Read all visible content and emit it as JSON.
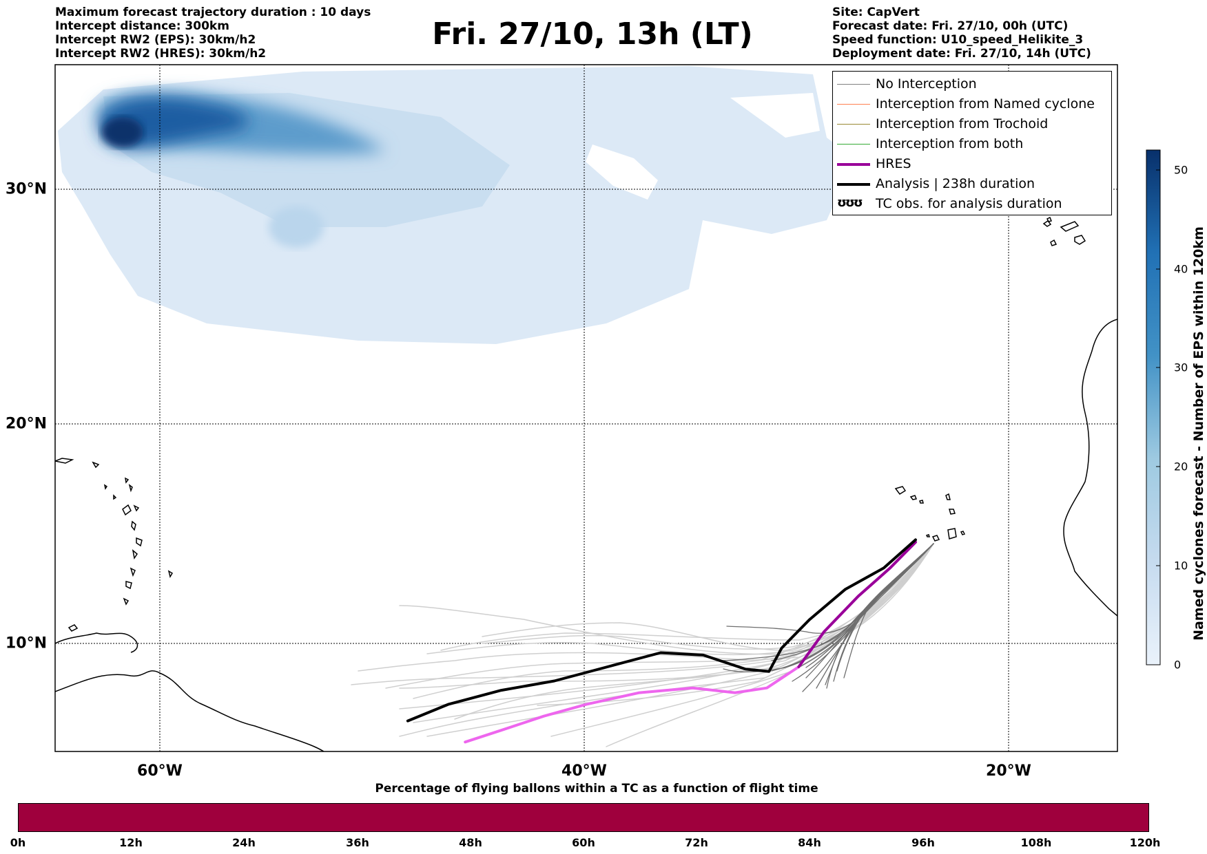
{
  "header_left": {
    "line1": "Maximum forecast trajectory duration : 10 days",
    "line2": "Intercept distance: 300km",
    "line3": "Intercept RW2 (EPS):  30km/h2",
    "line4": "Intercept RW2 (HRES): 30km/h2"
  },
  "title": "Fri. 27/10, 13h (LT)",
  "header_right": {
    "line1": "Site: CapVert",
    "line2": "Forecast date: Fri. 27/10, 00h (UTC)",
    "line3": "Speed function: U10_speed_Helikite_3",
    "line4": "Deployment date: Fri. 27/10, 14h (UTC)"
  },
  "map": {
    "lon_labels": [
      "60°W",
      "40°W",
      "20°W"
    ],
    "lat_labels": [
      "30°N",
      "20°N",
      "10°N"
    ],
    "lon_range": [
      -65,
      -15
    ],
    "lat_range": [
      5.4,
      34.6
    ],
    "colors": {
      "hres": "#ee66ee",
      "hres_legend": "#990099",
      "analysis": "#000000",
      "no_interception": "#888888",
      "named_cyclone": "#ff7f50",
      "trochoid": "#998833",
      "both": "#33aa33"
    }
  },
  "legend": {
    "items": [
      {
        "label": "No Interception",
        "color": "#808080",
        "width": 1.5
      },
      {
        "label": "Interception from Named cyclone",
        "color": "#ff7f50",
        "width": 1.5
      },
      {
        "label": "Interception from Trochoid",
        "color": "#998833",
        "width": 1.5
      },
      {
        "label": "Interception from both",
        "color": "#33aa33",
        "width": 1.5
      },
      {
        "label": "HRES",
        "color": "#990099",
        "width": 4
      },
      {
        "label": "Analysis | 238h duration",
        "color": "#000000",
        "width": 4
      }
    ],
    "tc_obs_symbol": "ʊʊʊ",
    "tc_obs_label": "TC obs. for analysis duration"
  },
  "colorbar": {
    "title": "Named cyclones forecast - Number of EPS within 120km",
    "ticks": [
      "0",
      "10",
      "20",
      "30",
      "40",
      "50"
    ],
    "range": [
      0,
      52
    ]
  },
  "flight_bar": {
    "title": "Percentage of flying ballons within a TC as a function of flight time",
    "ticks": [
      "0h",
      "12h",
      "24h",
      "36h",
      "48h",
      "60h",
      "72h",
      "84h",
      "96h",
      "108h",
      "120h"
    ],
    "fill_color": "#9f003d",
    "percentage": 0
  },
  "chart_data": {
    "type": "map",
    "analysis_track": [
      [
        -48.4,
        6.7
      ],
      [
        -46.5,
        7.4
      ],
      [
        -44,
        8.0
      ],
      [
        -41.5,
        8.4
      ],
      [
        -39,
        9.0
      ],
      [
        -36.5,
        9.6
      ],
      [
        -34.5,
        9.5
      ],
      [
        -32.5,
        8.9
      ],
      [
        -31.4,
        8.8
      ],
      [
        -30.8,
        9.8
      ],
      [
        -29.5,
        11.0
      ],
      [
        -27.8,
        12.3
      ],
      [
        -26.0,
        13.2
      ],
      [
        -24.5,
        14.4
      ]
    ],
    "hres_track": [
      [
        -45.7,
        5.8
      ],
      [
        -44,
        6.3
      ],
      [
        -42,
        6.9
      ],
      [
        -40,
        7.4
      ],
      [
        -37.5,
        7.9
      ],
      [
        -35,
        8.1
      ],
      [
        -33,
        7.9
      ],
      [
        -31.5,
        8.1
      ],
      [
        -30.0,
        9.0
      ],
      [
        -28.8,
        10.5
      ],
      [
        -27.2,
        12.0
      ],
      [
        -25.7,
        13.2
      ],
      [
        -24.5,
        14.3
      ]
    ]
  }
}
